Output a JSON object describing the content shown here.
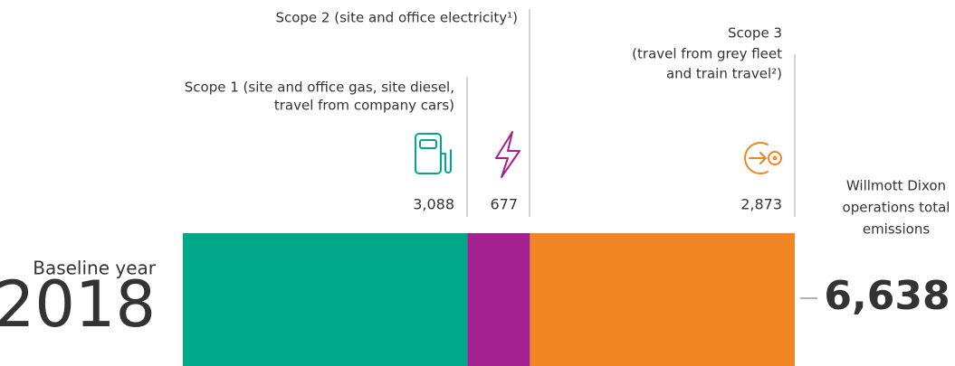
{
  "chart_data": {
    "type": "bar",
    "orientation": "horizontal",
    "stacked": true,
    "category_label": "Baseline year",
    "categories": [
      "2018"
    ],
    "xlim": [
      0,
      6638
    ],
    "series": [
      {
        "name": [
          "Scope 1 (site and office gas, site diesel,",
          "travel from company cars)"
        ],
        "color": "#00a88a",
        "values": [
          3088
        ],
        "value_labels": [
          "3,088"
        ]
      },
      {
        "name": [
          "Scope 2 (site and office electricity¹)"
        ],
        "color": "#a3228f",
        "values": [
          677
        ]
      },
      {
        "name": [
          "Scope 3",
          "(travel from grey fleet",
          "and train travel²)"
        ],
        "color": "#f28524",
        "values": [
          2873
        ],
        "value_labels": [
          "2,873"
        ]
      }
    ],
    "total_label": [
      "Willmott Dixon",
      "operations total",
      "emissions"
    ],
    "total": {
      "value": 6638,
      "label": "6,638"
    }
  }
}
